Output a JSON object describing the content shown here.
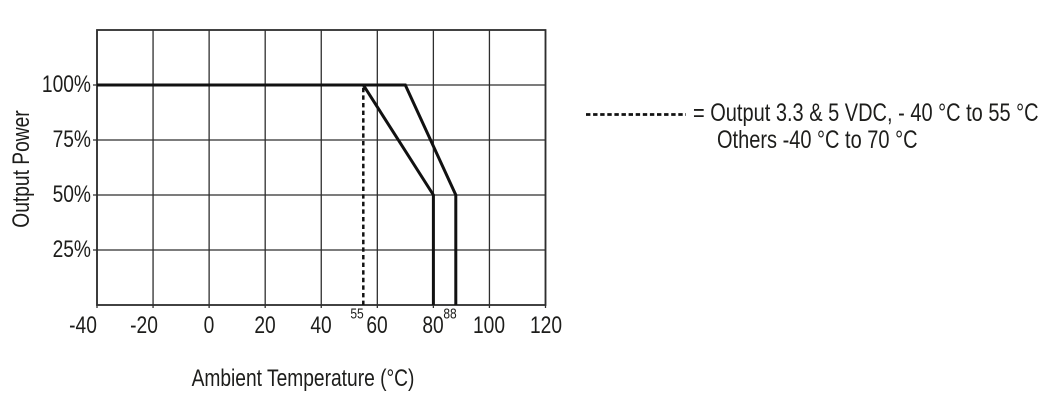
{
  "colors": {
    "ink": "#151513",
    "curve": "#111111",
    "grid": "#2e2e2e",
    "background": "#ffffff"
  },
  "chart_data": {
    "type": "line",
    "title": "",
    "xlabel": "Ambient Temperature (°C)",
    "ylabel": "Output Power",
    "xlim": [
      -40,
      120
    ],
    "ylim": [
      0,
      125
    ],
    "grid": true,
    "legend_position": "right",
    "x_ticks": [
      {
        "value": -40,
        "label": "-40"
      },
      {
        "value": -20,
        "label": "-20"
      },
      {
        "value": 0,
        "label": "0"
      },
      {
        "value": 20,
        "label": "20"
      },
      {
        "value": 40,
        "label": "40"
      },
      {
        "value": 60,
        "label": "60"
      },
      {
        "value": 80,
        "label": "80"
      },
      {
        "value": 100,
        "label": "100"
      },
      {
        "value": 120,
        "label": "120"
      }
    ],
    "x_ticks_minor": [
      {
        "value": 55,
        "label": "55"
      },
      {
        "value": 88,
        "label": "88"
      }
    ],
    "y_ticks": [
      {
        "value": 25,
        "label": "25%"
      },
      {
        "value": 50,
        "label": "50%"
      },
      {
        "value": 75,
        "label": "75%"
      },
      {
        "value": 100,
        "label": "100%"
      }
    ],
    "series": [
      {
        "name": "Output 3.3 & 5 VDC, -40 °C to 55 °C",
        "style": "solid",
        "points": [
          [
            -40,
            100
          ],
          [
            55,
            100
          ],
          [
            80,
            50
          ],
          [
            80,
            0
          ]
        ]
      },
      {
        "name": "Others, -40 °C to 70 °C",
        "style": "solid",
        "points": [
          [
            -40,
            100
          ],
          [
            70,
            100
          ],
          [
            88,
            50
          ],
          [
            88,
            0
          ]
        ]
      }
    ],
    "annotations": [
      {
        "type": "vline",
        "style": "dashed",
        "x": 55,
        "y_from": 0,
        "y_to": 100
      }
    ]
  },
  "legend": {
    "swatch": "dashed-line-icon",
    "line1": "= Output 3.3 & 5 VDC, - 40 °C to 55 °C",
    "line2": "Others -40 °C to 70 °C"
  }
}
